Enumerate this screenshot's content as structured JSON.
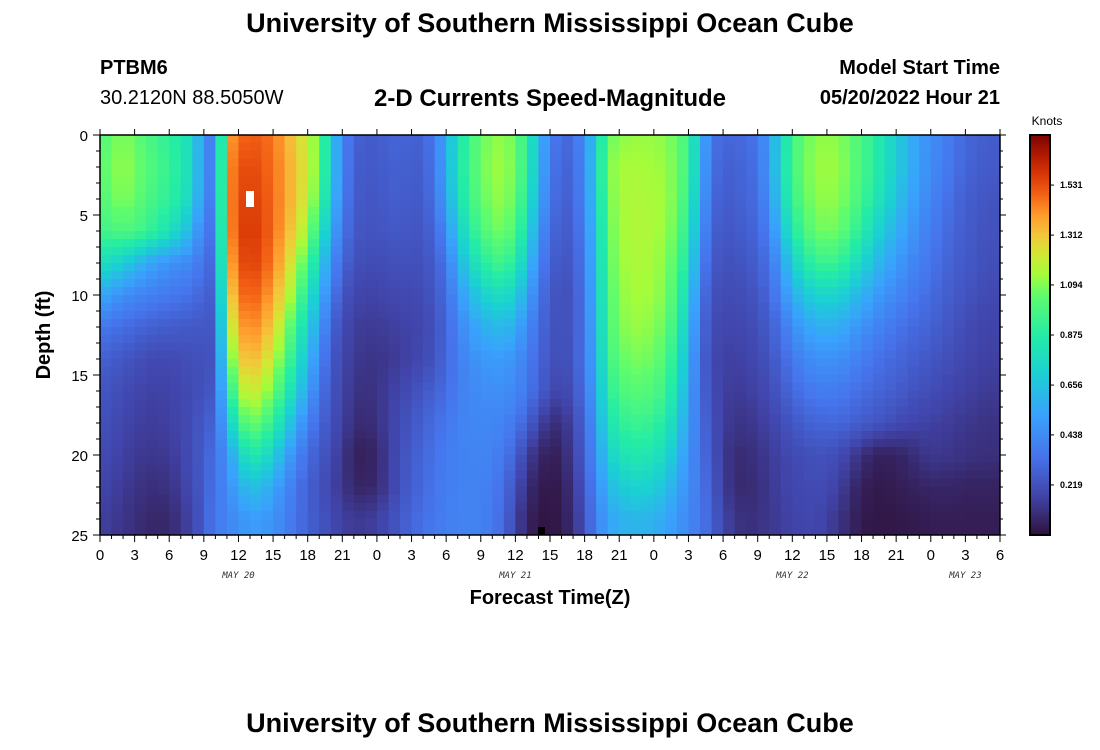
{
  "page": {
    "title": "University of Southern Mississippi Ocean Cube",
    "footer_title": "University of Southern Mississippi Ocean Cube",
    "station_id": "PTBM6",
    "station_coords": "30.2120N  88.5050W",
    "product": "2-D Currents Speed-Magnitude",
    "model_start_label": "Model Start Time",
    "model_start_value": "05/20/2022 Hour 21"
  },
  "chart_data": {
    "type": "heatmap",
    "title": "2-D Currents Speed-Magnitude",
    "xlabel": "Forecast Time(Z)",
    "ylabel": "Depth (ft)",
    "x_range_hours": [
      0,
      78
    ],
    "x_tick_step_hours": 3,
    "x_tick_labels": [
      "0",
      "3",
      "6",
      "9",
      "12",
      "15",
      "18",
      "21",
      "0",
      "3",
      "6",
      "9",
      "12",
      "15",
      "18",
      "21",
      "0",
      "3",
      "6",
      "9",
      "12",
      "15",
      "18",
      "21",
      "0",
      "3",
      "6"
    ],
    "day_labels": [
      {
        "label": "MAY 20",
        "hour": 12
      },
      {
        "label": "MAY 21",
        "hour": 36
      },
      {
        "label": "MAY 22",
        "hour": 60
      },
      {
        "label": "MAY 23",
        "hour": 75
      }
    ],
    "y_range_ft": [
      0,
      25
    ],
    "y_tick_values": [
      0,
      5,
      10,
      15,
      20,
      25
    ],
    "colorbar": {
      "title": "Knots",
      "ticks": [
        "1.531",
        "1.312",
        "1.094",
        "0.875",
        "0.656",
        "0.438",
        "0.219"
      ],
      "tick_values": [
        1.531,
        1.312,
        1.094,
        0.875,
        0.656,
        0.438,
        0.219
      ],
      "min": 0.0,
      "max": 1.75
    },
    "grid_hours": [
      0,
      1,
      2,
      3,
      4,
      5,
      6,
      7,
      8,
      9,
      10,
      11,
      12,
      13,
      14,
      15,
      16,
      17,
      18,
      19,
      20,
      21,
      22,
      23,
      24,
      25,
      26,
      27,
      28,
      29,
      30,
      31,
      32,
      33,
      34,
      35,
      36,
      37,
      38,
      39,
      40,
      41,
      42,
      43,
      44,
      45,
      46,
      47,
      48,
      49,
      50,
      51,
      52,
      53,
      54,
      55,
      56,
      57,
      58,
      59,
      60,
      61,
      62,
      63,
      64,
      65,
      66,
      67,
      68,
      69,
      70,
      71,
      72,
      73,
      74,
      75,
      76,
      77
    ],
    "depths_ft": [
      0,
      2,
      4,
      6,
      8,
      10,
      12,
      14,
      16,
      18,
      20,
      22,
      24
    ],
    "speed_knots": [
      [
        1.0,
        1.05,
        1.1,
        1.05,
        1.0,
        0.95,
        0.9,
        0.85,
        0.75,
        0.45,
        0.35,
        1.35,
        1.48,
        1.5,
        1.5,
        1.45,
        1.38,
        1.28,
        1.2,
        1.05,
        0.7,
        0.42,
        0.28,
        0.26,
        0.26,
        0.28,
        0.3,
        0.28,
        0.28,
        0.38,
        0.55,
        0.8,
        0.95,
        1.05,
        1.1,
        1.12,
        1.05,
        0.9,
        0.62,
        0.4,
        0.3,
        0.32,
        0.45,
        0.7,
        1.05,
        1.1,
        1.12,
        1.12,
        1.12,
        1.1,
        1.05,
        0.95,
        0.62,
        0.35,
        0.3,
        0.3,
        0.32,
        0.35,
        0.5,
        0.75,
        0.95,
        1.05,
        1.1,
        1.12,
        1.1,
        1.05,
        0.98,
        0.9,
        0.8,
        0.7,
        0.6,
        0.5,
        0.45,
        0.4,
        0.35,
        0.3,
        0.28,
        0.26
      ],
      [
        1.02,
        1.08,
        1.12,
        1.08,
        1.02,
        0.98,
        0.92,
        0.86,
        0.75,
        0.46,
        0.36,
        1.38,
        1.52,
        1.54,
        1.52,
        1.46,
        1.4,
        1.3,
        1.22,
        1.05,
        0.7,
        0.42,
        0.27,
        0.25,
        0.25,
        0.27,
        0.28,
        0.26,
        0.27,
        0.36,
        0.55,
        0.82,
        0.96,
        1.06,
        1.12,
        1.13,
        1.06,
        0.9,
        0.6,
        0.38,
        0.28,
        0.3,
        0.44,
        0.72,
        1.08,
        1.14,
        1.15,
        1.14,
        1.14,
        1.12,
        1.06,
        0.95,
        0.6,
        0.33,
        0.28,
        0.28,
        0.3,
        0.34,
        0.5,
        0.76,
        0.96,
        1.06,
        1.12,
        1.13,
        1.12,
        1.06,
        0.98,
        0.9,
        0.8,
        0.7,
        0.6,
        0.5,
        0.44,
        0.39,
        0.34,
        0.29,
        0.27,
        0.25
      ],
      [
        1.0,
        1.05,
        1.1,
        1.05,
        1.0,
        0.95,
        0.9,
        0.84,
        0.72,
        0.44,
        0.35,
        1.38,
        1.54,
        1.56,
        1.54,
        1.47,
        1.4,
        1.3,
        1.2,
        1.0,
        0.66,
        0.4,
        0.26,
        0.24,
        0.24,
        0.26,
        0.27,
        0.25,
        0.26,
        0.34,
        0.52,
        0.78,
        0.94,
        1.04,
        1.1,
        1.12,
        1.04,
        0.86,
        0.56,
        0.36,
        0.27,
        0.29,
        0.42,
        0.7,
        1.06,
        1.14,
        1.16,
        1.15,
        1.15,
        1.13,
        1.06,
        0.92,
        0.56,
        0.31,
        0.26,
        0.27,
        0.29,
        0.32,
        0.46,
        0.72,
        0.92,
        1.04,
        1.1,
        1.12,
        1.1,
        1.04,
        0.96,
        0.86,
        0.76,
        0.66,
        0.56,
        0.47,
        0.41,
        0.36,
        0.31,
        0.27,
        0.25,
        0.23
      ],
      [
        0.95,
        0.98,
        1.0,
        0.98,
        0.94,
        0.88,
        0.8,
        0.7,
        0.58,
        0.38,
        0.32,
        1.36,
        1.55,
        1.58,
        1.55,
        1.47,
        1.38,
        1.26,
        1.12,
        0.88,
        0.56,
        0.36,
        0.25,
        0.23,
        0.23,
        0.24,
        0.25,
        0.23,
        0.24,
        0.3,
        0.44,
        0.68,
        0.86,
        0.98,
        1.05,
        1.08,
        0.98,
        0.78,
        0.48,
        0.32,
        0.25,
        0.27,
        0.4,
        0.66,
        1.04,
        1.13,
        1.16,
        1.16,
        1.15,
        1.12,
        1.04,
        0.86,
        0.5,
        0.28,
        0.24,
        0.25,
        0.27,
        0.3,
        0.4,
        0.62,
        0.84,
        0.98,
        1.05,
        1.08,
        1.06,
        0.98,
        0.88,
        0.76,
        0.66,
        0.58,
        0.5,
        0.43,
        0.38,
        0.33,
        0.29,
        0.26,
        0.24,
        0.22
      ],
      [
        0.8,
        0.75,
        0.7,
        0.62,
        0.55,
        0.5,
        0.46,
        0.44,
        0.42,
        0.33,
        0.29,
        1.3,
        1.52,
        1.56,
        1.53,
        1.44,
        1.32,
        1.16,
        0.98,
        0.72,
        0.46,
        0.3,
        0.22,
        0.2,
        0.2,
        0.21,
        0.22,
        0.21,
        0.22,
        0.26,
        0.36,
        0.56,
        0.74,
        0.86,
        0.94,
        0.96,
        0.86,
        0.66,
        0.42,
        0.28,
        0.23,
        0.25,
        0.38,
        0.64,
        1.02,
        1.12,
        1.15,
        1.15,
        1.14,
        1.1,
        1.0,
        0.8,
        0.44,
        0.25,
        0.22,
        0.22,
        0.24,
        0.27,
        0.34,
        0.5,
        0.7,
        0.84,
        0.92,
        0.95,
        0.92,
        0.84,
        0.74,
        0.64,
        0.56,
        0.5,
        0.44,
        0.39,
        0.35,
        0.31,
        0.27,
        0.25,
        0.23,
        0.21
      ],
      [
        0.55,
        0.5,
        0.45,
        0.42,
        0.4,
        0.38,
        0.36,
        0.35,
        0.33,
        0.28,
        0.26,
        1.2,
        1.46,
        1.5,
        1.47,
        1.37,
        1.24,
        1.06,
        0.84,
        0.6,
        0.38,
        0.24,
        0.18,
        0.17,
        0.17,
        0.18,
        0.19,
        0.19,
        0.2,
        0.24,
        0.32,
        0.46,
        0.6,
        0.7,
        0.76,
        0.78,
        0.7,
        0.54,
        0.36,
        0.25,
        0.21,
        0.24,
        0.36,
        0.62,
        1.0,
        1.1,
        1.14,
        1.14,
        1.13,
        1.08,
        0.96,
        0.72,
        0.38,
        0.22,
        0.2,
        0.2,
        0.21,
        0.24,
        0.3,
        0.42,
        0.56,
        0.66,
        0.72,
        0.74,
        0.72,
        0.66,
        0.58,
        0.52,
        0.46,
        0.42,
        0.38,
        0.35,
        0.31,
        0.28,
        0.25,
        0.23,
        0.21,
        0.19
      ],
      [
        0.36,
        0.34,
        0.32,
        0.3,
        0.28,
        0.27,
        0.26,
        0.25,
        0.25,
        0.24,
        0.24,
        1.08,
        1.38,
        1.43,
        1.4,
        1.28,
        1.12,
        0.94,
        0.72,
        0.5,
        0.3,
        0.2,
        0.15,
        0.14,
        0.14,
        0.15,
        0.16,
        0.17,
        0.18,
        0.22,
        0.3,
        0.4,
        0.5,
        0.56,
        0.6,
        0.62,
        0.56,
        0.44,
        0.32,
        0.24,
        0.21,
        0.24,
        0.36,
        0.6,
        0.98,
        1.08,
        1.12,
        1.12,
        1.1,
        1.05,
        0.9,
        0.64,
        0.34,
        0.2,
        0.18,
        0.18,
        0.19,
        0.21,
        0.26,
        0.34,
        0.44,
        0.52,
        0.56,
        0.58,
        0.56,
        0.52,
        0.46,
        0.42,
        0.38,
        0.35,
        0.32,
        0.3,
        0.28,
        0.25,
        0.23,
        0.2,
        0.18,
        0.17
      ],
      [
        0.28,
        0.26,
        0.24,
        0.22,
        0.2,
        0.19,
        0.19,
        0.2,
        0.21,
        0.22,
        0.23,
        0.94,
        1.28,
        1.34,
        1.3,
        1.18,
        1.02,
        0.84,
        0.62,
        0.42,
        0.26,
        0.18,
        0.14,
        0.12,
        0.12,
        0.13,
        0.15,
        0.17,
        0.19,
        0.23,
        0.3,
        0.38,
        0.44,
        0.48,
        0.5,
        0.5,
        0.46,
        0.38,
        0.3,
        0.23,
        0.2,
        0.24,
        0.36,
        0.58,
        0.94,
        1.04,
        1.08,
        1.08,
        1.06,
        1.0,
        0.84,
        0.58,
        0.32,
        0.19,
        0.16,
        0.16,
        0.17,
        0.19,
        0.23,
        0.29,
        0.36,
        0.42,
        0.45,
        0.46,
        0.45,
        0.42,
        0.38,
        0.35,
        0.32,
        0.3,
        0.28,
        0.26,
        0.24,
        0.22,
        0.2,
        0.18,
        0.17,
        0.16
      ],
      [
        0.24,
        0.22,
        0.2,
        0.18,
        0.17,
        0.16,
        0.17,
        0.18,
        0.2,
        0.22,
        0.25,
        0.78,
        1.14,
        1.22,
        1.18,
        1.06,
        0.9,
        0.72,
        0.52,
        0.36,
        0.24,
        0.17,
        0.12,
        0.1,
        0.12,
        0.15,
        0.18,
        0.21,
        0.24,
        0.28,
        0.32,
        0.38,
        0.42,
        0.44,
        0.45,
        0.45,
        0.42,
        0.36,
        0.28,
        0.2,
        0.17,
        0.22,
        0.34,
        0.54,
        0.88,
        0.98,
        1.02,
        1.02,
        1.0,
        0.94,
        0.78,
        0.54,
        0.32,
        0.2,
        0.16,
        0.14,
        0.15,
        0.17,
        0.2,
        0.25,
        0.3,
        0.35,
        0.37,
        0.38,
        0.37,
        0.35,
        0.32,
        0.3,
        0.28,
        0.26,
        0.24,
        0.22,
        0.2,
        0.19,
        0.17,
        0.16,
        0.15,
        0.14
      ],
      [
        0.22,
        0.2,
        0.18,
        0.16,
        0.15,
        0.15,
        0.16,
        0.18,
        0.21,
        0.25,
        0.3,
        0.6,
        0.94,
        1.06,
        1.02,
        0.9,
        0.74,
        0.56,
        0.4,
        0.3,
        0.22,
        0.16,
        0.1,
        0.08,
        0.11,
        0.16,
        0.2,
        0.24,
        0.28,
        0.32,
        0.36,
        0.4,
        0.42,
        0.42,
        0.42,
        0.4,
        0.36,
        0.28,
        0.18,
        0.1,
        0.1,
        0.18,
        0.3,
        0.5,
        0.8,
        0.9,
        0.94,
        0.94,
        0.92,
        0.86,
        0.7,
        0.5,
        0.34,
        0.22,
        0.15,
        0.12,
        0.12,
        0.14,
        0.17,
        0.2,
        0.24,
        0.27,
        0.29,
        0.3,
        0.3,
        0.28,
        0.26,
        0.24,
        0.22,
        0.2,
        0.18,
        0.17,
        0.16,
        0.15,
        0.14,
        0.13,
        0.12,
        0.11
      ],
      [
        0.2,
        0.18,
        0.16,
        0.14,
        0.13,
        0.13,
        0.14,
        0.17,
        0.21,
        0.26,
        0.34,
        0.46,
        0.7,
        0.84,
        0.82,
        0.7,
        0.56,
        0.42,
        0.32,
        0.25,
        0.2,
        0.12,
        0.06,
        0.04,
        0.08,
        0.15,
        0.21,
        0.26,
        0.3,
        0.34,
        0.38,
        0.4,
        0.41,
        0.41,
        0.4,
        0.36,
        0.28,
        0.16,
        0.08,
        0.04,
        0.06,
        0.15,
        0.28,
        0.46,
        0.7,
        0.8,
        0.84,
        0.84,
        0.82,
        0.76,
        0.62,
        0.46,
        0.35,
        0.24,
        0.14,
        0.09,
        0.09,
        0.11,
        0.14,
        0.17,
        0.19,
        0.21,
        0.22,
        0.22,
        0.2,
        0.16,
        0.1,
        0.06,
        0.05,
        0.06,
        0.08,
        0.11,
        0.13,
        0.13,
        0.12,
        0.11,
        0.1,
        0.1
      ],
      [
        0.18,
        0.16,
        0.14,
        0.12,
        0.1,
        0.1,
        0.11,
        0.15,
        0.2,
        0.26,
        0.36,
        0.42,
        0.56,
        0.64,
        0.62,
        0.54,
        0.44,
        0.35,
        0.28,
        0.22,
        0.18,
        0.12,
        0.08,
        0.06,
        0.09,
        0.15,
        0.22,
        0.27,
        0.31,
        0.35,
        0.38,
        0.4,
        0.4,
        0.4,
        0.38,
        0.32,
        0.22,
        0.1,
        0.04,
        0.02,
        0.04,
        0.12,
        0.25,
        0.42,
        0.6,
        0.68,
        0.72,
        0.72,
        0.7,
        0.64,
        0.54,
        0.44,
        0.36,
        0.26,
        0.15,
        0.09,
        0.08,
        0.1,
        0.13,
        0.16,
        0.18,
        0.19,
        0.2,
        0.19,
        0.16,
        0.1,
        0.05,
        0.03,
        0.03,
        0.04,
        0.05,
        0.06,
        0.07,
        0.07,
        0.07,
        0.06,
        0.06,
        0.06
      ],
      [
        0.16,
        0.14,
        0.12,
        0.1,
        0.08,
        0.07,
        0.08,
        0.12,
        0.18,
        0.26,
        0.38,
        0.4,
        0.46,
        0.5,
        0.5,
        0.46,
        0.4,
        0.34,
        0.28,
        0.24,
        0.2,
        0.16,
        0.14,
        0.14,
        0.16,
        0.2,
        0.25,
        0.3,
        0.33,
        0.36,
        0.39,
        0.4,
        0.4,
        0.4,
        0.37,
        0.3,
        0.18,
        0.06,
        0.02,
        0.01,
        0.03,
        0.1,
        0.22,
        0.4,
        0.52,
        0.58,
        0.6,
        0.6,
        0.58,
        0.54,
        0.48,
        0.42,
        0.37,
        0.28,
        0.18,
        0.12,
        0.1,
        0.11,
        0.13,
        0.15,
        0.17,
        0.18,
        0.18,
        0.16,
        0.12,
        0.07,
        0.03,
        0.02,
        0.02,
        0.02,
        0.03,
        0.03,
        0.04,
        0.04,
        0.04,
        0.04,
        0.04,
        0.04
      ]
    ]
  }
}
